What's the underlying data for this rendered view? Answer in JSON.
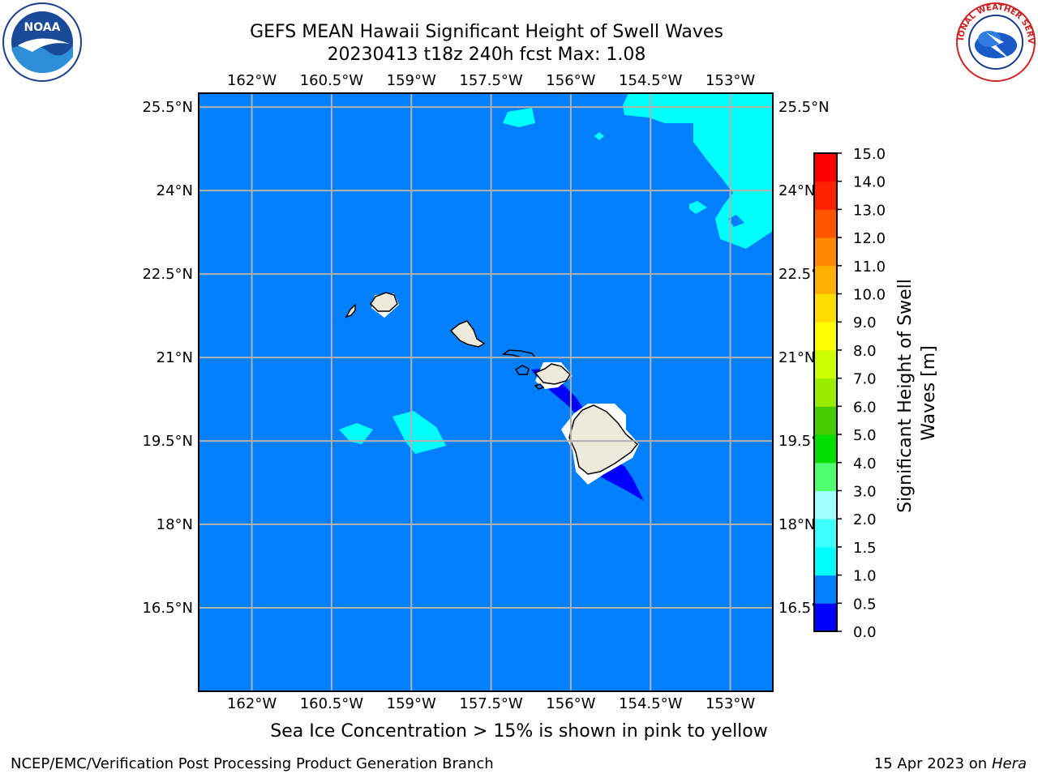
{
  "title": {
    "line1": "GEFS MEAN Hawaii Significant Height of Swell Waves",
    "line2": "20230413 t18z 240h fcst   Max: 1.08"
  },
  "logos": {
    "left": "noaa-logo",
    "right": "national-weather-service-logo",
    "left_text": "NOAA",
    "right_text": "NATIONAL WEATHER SERVICE"
  },
  "map": {
    "lon_labels": [
      "162°W",
      "160.5°W",
      "159°W",
      "157.5°W",
      "156°W",
      "154.5°W",
      "153°W"
    ],
    "lat_labels": [
      "25.5°N",
      "24°N",
      "22.5°N",
      "21°N",
      "19.5°N",
      "18°N",
      "16.5°N"
    ],
    "lons": [
      -162,
      -160.5,
      -159,
      -157.5,
      -156,
      -154.5,
      -153
    ],
    "lats": [
      25.5,
      24,
      22.5,
      21,
      19.5,
      18,
      16.5
    ],
    "lon_range": [
      -163,
      -152.2
    ],
    "lat_range": [
      15,
      25.75
    ],
    "ocean_color": "#0080ff",
    "grid_color": "#b0b0b0",
    "land_color": "#eeeadb"
  },
  "colorbar": {
    "label": "Significant Height of Swell Waves [m]",
    "label_line1": "Significant Height of Swell",
    "label_line2": "Waves [m]",
    "ticks": [
      "0.0",
      "0.5",
      "1.0",
      "1.5",
      "2.0",
      "3.0",
      "4.0",
      "5.0",
      "6.0",
      "7.0",
      "8.0",
      "9.0",
      "10.0",
      "11.0",
      "12.0",
      "13.0",
      "14.0",
      "15.0"
    ],
    "colors": [
      "#0000ff",
      "#0080ff",
      "#00ffff",
      "#40ffff",
      "#a0ffff",
      "#50ff70",
      "#00dd00",
      "#44cc00",
      "#99ee00",
      "#ccff00",
      "#ffff00",
      "#ffdd00",
      "#ffb000",
      "#ff8800",
      "#ff5500",
      "#ff2200",
      "#ff0000"
    ]
  },
  "footer": {
    "center": "Sea Ice Concentration > 15% is shown in pink to yellow",
    "left": "NCEP/EMC/Verification Post Processing Product Generation Branch",
    "right_prefix": "15 Apr 2023 on ",
    "right_host": "Hera"
  }
}
